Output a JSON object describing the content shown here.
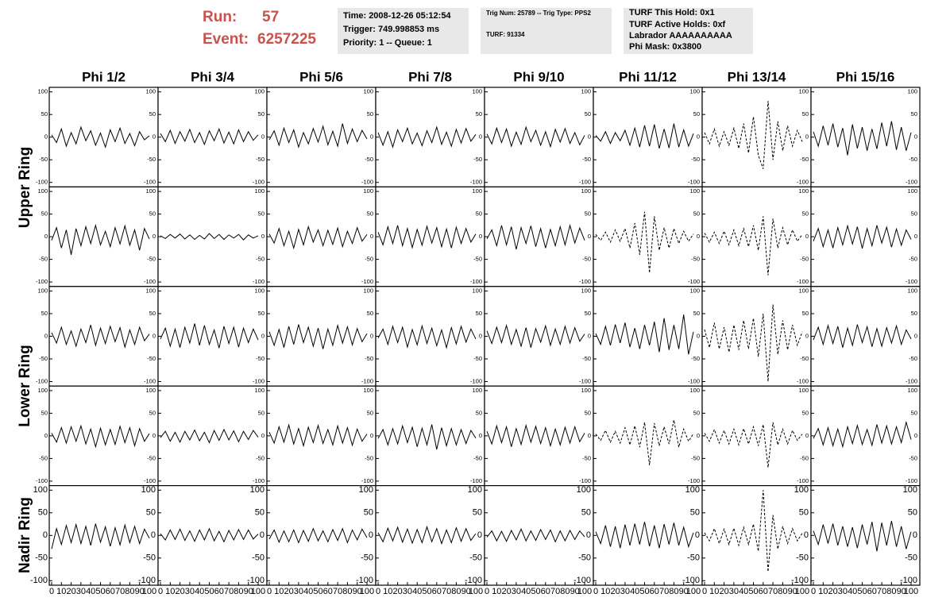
{
  "header": {
    "run_label": "Run:",
    "run": "57",
    "event_label": "Event:",
    "event": "6257225",
    "box1": [
      "Time: 2008-12-26 05:12:54",
      "Trigger: 749.998853 ms",
      "Priority: 1 -- Queue: 1"
    ],
    "box2": [
      "Trig Num: 25789 -- Trig Type: PPS2",
      "TURF: 91334"
    ],
    "box3": [
      "TURF This Hold: 0x1",
      "TURF Active Holds: 0xf",
      "Labrador AAAAAAAAAA",
      "Phi Mask: 0x3800"
    ]
  },
  "columns": [
    "Phi 1/2",
    "Phi 3/4",
    "Phi 5/6",
    "Phi 7/8",
    "Phi 9/10",
    "Phi 11/12",
    "Phi 13/14",
    "Phi 15/16"
  ],
  "row_labels": [
    "Upper Ring",
    "Lower Ring",
    "Nadir Ring"
  ],
  "chart_data": {
    "type": "line",
    "color": "#000000",
    "x": [
      0,
      5,
      10,
      15,
      20,
      25,
      30,
      35,
      40,
      45,
      50,
      55,
      60,
      65,
      70,
      75,
      80,
      85,
      90,
      95,
      100
    ],
    "xlim": [
      0,
      100
    ],
    "xticks": [
      0,
      10,
      20,
      30,
      40,
      50,
      60,
      70,
      80,
      90,
      100
    ],
    "ylim": [
      -110,
      110
    ],
    "yticks": [
      -100,
      -50,
      0,
      50,
      100
    ],
    "panels": [
      {
        "values": [
          5,
          -12,
          18,
          -20,
          10,
          -15,
          22,
          -8,
          14,
          -18,
          9,
          -22,
          16,
          -10,
          20,
          -14,
          8,
          -19,
          12,
          -6,
          3
        ]
      },
      {
        "values": [
          8,
          -10,
          15,
          -14,
          12,
          -9,
          17,
          -12,
          10,
          -16,
          14,
          -8,
          18,
          -13,
          11,
          -15,
          16,
          -10,
          12,
          -7,
          5
        ]
      },
      {
        "values": [
          -6,
          14,
          -18,
          20,
          -12,
          16,
          -22,
          10,
          -15,
          19,
          -11,
          24,
          -17,
          13,
          -20,
          30,
          -14,
          18,
          -10,
          15,
          -4
        ]
      },
      {
        "values": [
          10,
          -18,
          12,
          -22,
          16,
          -10,
          20,
          -15,
          9,
          -19,
          14,
          -12,
          22,
          -16,
          11,
          -20,
          17,
          -13,
          19,
          -9,
          6
        ]
      },
      {
        "values": [
          7,
          -15,
          20,
          -12,
          18,
          -20,
          11,
          -16,
          22,
          -10,
          15,
          -18,
          12,
          -21,
          17,
          -11,
          19,
          -14,
          10,
          -17,
          4
        ]
      },
      {
        "values": [
          4,
          -9,
          12,
          -14,
          10,
          -8,
          15,
          -18,
          20,
          -22,
          26,
          -20,
          28,
          -25,
          18,
          -24,
          30,
          -22,
          16,
          -20,
          8
        ]
      },
      {
        "values": [
          10,
          -15,
          18,
          -20,
          12,
          -18,
          20,
          -25,
          30,
          -35,
          45,
          -40,
          -70,
          80,
          -50,
          35,
          -30,
          25,
          -20,
          15,
          -10
        ],
        "dashed": true
      },
      {
        "values": [
          12,
          -20,
          25,
          -18,
          30,
          -22,
          20,
          -40,
          28,
          -25,
          22,
          -30,
          18,
          -26,
          32,
          -20,
          35,
          -28,
          22,
          -30,
          10
        ]
      },
      {
        "values": [
          -8,
          20,
          -25,
          15,
          -40,
          18,
          -20,
          22,
          -15,
          25,
          -18,
          12,
          -22,
          20,
          -16,
          24,
          -19,
          15,
          -30,
          18,
          -5
        ]
      },
      {
        "values": [
          2,
          -4,
          5,
          -3,
          6,
          -5,
          4,
          -6,
          3,
          -5,
          7,
          -4,
          5,
          -6,
          4,
          -3,
          5,
          -7,
          4,
          -3,
          2
        ]
      },
      {
        "values": [
          6,
          -14,
          18,
          -20,
          12,
          -25,
          16,
          -18,
          22,
          -12,
          15,
          -20,
          14,
          -17,
          19,
          -22,
          12,
          -15,
          20,
          -10,
          5
        ]
      },
      {
        "values": [
          10,
          -18,
          22,
          -15,
          25,
          -20,
          18,
          -24,
          16,
          -19,
          23,
          -14,
          20,
          -22,
          17,
          -25,
          21,
          -15,
          18,
          -12,
          6
        ]
      },
      {
        "values": [
          -5,
          15,
          -20,
          25,
          -18,
          22,
          -28,
          20,
          -15,
          24,
          -22,
          18,
          -25,
          16,
          -20,
          22,
          -18,
          25,
          -14,
          19,
          -8
        ]
      },
      {
        "values": [
          5,
          -8,
          10,
          -12,
          15,
          -10,
          18,
          -25,
          30,
          -40,
          55,
          -80,
          45,
          -30,
          20,
          -25,
          18,
          -15,
          12,
          -10,
          6
        ],
        "dashed": true
      },
      {
        "values": [
          8,
          -12,
          10,
          -15,
          12,
          -18,
          15,
          -20,
          18,
          -22,
          25,
          -30,
          45,
          -85,
          40,
          -25,
          20,
          -18,
          15,
          -10,
          5
        ],
        "dashed": true
      },
      {
        "values": [
          -10,
          18,
          -22,
          15,
          -25,
          20,
          -18,
          24,
          -16,
          22,
          -26,
          18,
          -20,
          25,
          -14,
          21,
          -23,
          17,
          -19,
          15,
          -6
        ]
      },
      {
        "values": [
          8,
          -15,
          20,
          -18,
          12,
          -22,
          16,
          -14,
          25,
          -20,
          18,
          -16,
          22,
          -12,
          19,
          -24,
          14,
          -18,
          20,
          -10,
          5
        ]
      },
      {
        "values": [
          -6,
          18,
          -22,
          16,
          -25,
          20,
          -15,
          28,
          -20,
          24,
          -18,
          14,
          -26,
          22,
          -16,
          20,
          -24,
          18,
          -14,
          16,
          -8
        ]
      },
      {
        "values": [
          10,
          -20,
          15,
          -25,
          22,
          -18,
          26,
          -14,
          20,
          -22,
          18,
          -28,
          16,
          -20,
          24,
          -15,
          21,
          -19,
          17,
          -12,
          6
        ]
      },
      {
        "values": [
          -4,
          16,
          -18,
          22,
          -14,
          20,
          -24,
          15,
          -19,
          23,
          -16,
          18,
          -21,
          14,
          -25,
          19,
          -17,
          22,
          -13,
          16,
          -6
        ]
      },
      {
        "values": [
          12,
          -16,
          20,
          -14,
          24,
          -18,
          15,
          -22,
          19,
          -25,
          17,
          -13,
          23,
          -20,
          16,
          -18,
          22,
          -15,
          19,
          -11,
          5
        ]
      },
      {
        "values": [
          6,
          -18,
          22,
          -20,
          26,
          -15,
          30,
          -24,
          18,
          -28,
          25,
          -20,
          32,
          -35,
          40,
          -30,
          25,
          -28,
          48,
          -40,
          10
        ]
      },
      {
        "values": [
          15,
          -25,
          30,
          -28,
          20,
          -35,
          25,
          -30,
          35,
          -28,
          40,
          -45,
          50,
          -100,
          70,
          -40,
          35,
          -30,
          25,
          -20,
          10
        ],
        "dashed": true
      },
      {
        "values": [
          -8,
          20,
          -18,
          24,
          -16,
          22,
          -25,
          18,
          -20,
          26,
          -14,
          21,
          -23,
          17,
          -22,
          19,
          -15,
          23,
          -18,
          14,
          -6
        ]
      },
      {
        "values": [
          6,
          -14,
          18,
          -16,
          20,
          -12,
          22,
          -18,
          15,
          -24,
          17,
          -20,
          14,
          -19,
          21,
          -15,
          18,
          -22,
          16,
          -12,
          5
        ]
      },
      {
        "values": [
          -4,
          10,
          -12,
          8,
          -14,
          10,
          -9,
          13,
          -11,
          8,
          -15,
          12,
          -10,
          14,
          -9,
          11,
          -13,
          10,
          -8,
          12,
          -3
        ]
      },
      {
        "values": [
          8,
          -16,
          20,
          -14,
          24,
          -18,
          16,
          -22,
          19,
          -15,
          23,
          -17,
          14,
          -20,
          22,
          -16,
          18,
          -21,
          15,
          -12,
          4
        ]
      },
      {
        "values": [
          -6,
          14,
          -20,
          16,
          -18,
          22,
          -15,
          19,
          -24,
          17,
          -20,
          25,
          -30,
          18,
          -22,
          16,
          -20,
          14,
          -17,
          12,
          -5
        ]
      },
      {
        "values": [
          10,
          -18,
          22,
          -15,
          20,
          -24,
          16,
          -19,
          23,
          -14,
          21,
          -17,
          18,
          -22,
          15,
          -20,
          19,
          -16,
          20,
          -13,
          6
        ]
      },
      {
        "values": [
          4,
          -10,
          12,
          -14,
          10,
          -16,
          18,
          -20,
          22,
          -25,
          30,
          -65,
          28,
          -22,
          20,
          -18,
          35,
          -25,
          15,
          -12,
          5
        ],
        "dashed": true
      },
      {
        "values": [
          6,
          -12,
          14,
          -16,
          12,
          -18,
          15,
          -20,
          16,
          -18,
          20,
          -22,
          25,
          -70,
          30,
          -20,
          15,
          -18,
          12,
          -10,
          4
        ],
        "dashed": true
      },
      {
        "values": [
          -6,
          16,
          -20,
          18,
          -22,
          15,
          -24,
          20,
          -17,
          23,
          -19,
          14,
          -21,
          25,
          -16,
          22,
          -18,
          20,
          -15,
          30,
          -8
        ]
      },
      {
        "values": [
          -30,
          15,
          -20,
          22,
          -16,
          24,
          -18,
          20,
          -22,
          26,
          -15,
          19,
          -24,
          17,
          -21,
          23,
          -16,
          20,
          -18,
          14,
          -6
        ]
      },
      {
        "values": [
          4,
          -10,
          12,
          -9,
          14,
          -11,
          10,
          -13,
          12,
          -10,
          15,
          -12,
          9,
          -14,
          11,
          -10,
          13,
          -9,
          12,
          -8,
          3
        ]
      },
      {
        "values": [
          -8,
          12,
          -15,
          10,
          -14,
          12,
          -16,
          11,
          -13,
          15,
          -12,
          10,
          -14,
          13,
          -11,
          15,
          -16,
          12,
          -10,
          14,
          -5
        ]
      },
      {
        "values": [
          6,
          -14,
          16,
          -12,
          18,
          -15,
          14,
          -17,
          13,
          -16,
          19,
          -14,
          15,
          -18,
          12,
          -16,
          17,
          -13,
          15,
          -11,
          4
        ]
      },
      {
        "values": [
          -4,
          10,
          -12,
          9,
          -13,
          11,
          -10,
          14,
          -12,
          10,
          -11,
          13,
          -9,
          12,
          -14,
          10,
          -12,
          11,
          -9,
          10,
          -3
        ]
      },
      {
        "values": [
          8,
          -18,
          22,
          -25,
          20,
          -28,
          24,
          -22,
          26,
          -20,
          30,
          -24,
          22,
          -28,
          25,
          -20,
          28,
          -22,
          18,
          -25,
          6
        ]
      },
      {
        "values": [
          6,
          -12,
          15,
          -18,
          14,
          -20,
          16,
          -22,
          18,
          -20,
          25,
          -35,
          100,
          -80,
          45,
          -30,
          20,
          -18,
          15,
          -12,
          5
        ],
        "dashed": true
      },
      {
        "values": [
          10,
          -20,
          24,
          -18,
          26,
          -22,
          20,
          -25,
          18,
          -28,
          24,
          -20,
          30,
          -35,
          28,
          -22,
          32,
          -25,
          20,
          -30,
          8
        ]
      }
    ]
  }
}
